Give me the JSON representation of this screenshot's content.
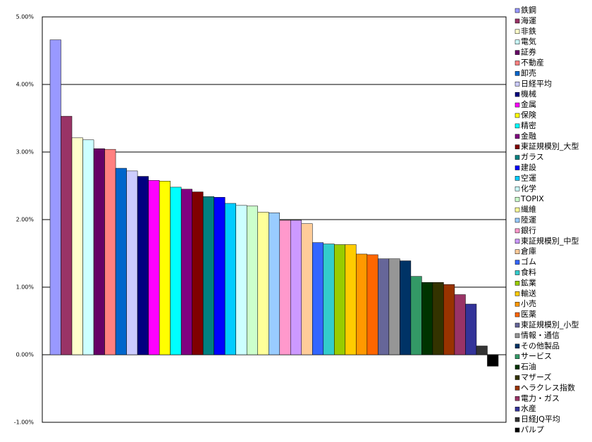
{
  "chart_data": {
    "type": "bar",
    "categories": [
      "鉄鋼",
      "海運",
      "非鉄",
      "電気",
      "証券",
      "不動産",
      "卸売",
      "日経平均",
      "機械",
      "金属",
      "保険",
      "精密",
      "金融",
      "東証規模別_大型",
      "ガラス",
      "建設",
      "空運",
      "化学",
      "TOPIX",
      "繊維",
      "陸運",
      "銀行",
      "東証規模別_中型",
      "倉庫",
      "ゴム",
      "食料",
      "鉱業",
      "輸送",
      "小売",
      "医薬",
      "東証規模別_小型",
      "情報・通信",
      "その他製品",
      "サービス",
      "石油",
      "マザーズ",
      "ヘラクレス指数",
      "電力・ガス",
      "水産",
      "日経JQ平均",
      "パルプ"
    ],
    "values": [
      4.66,
      3.53,
      3.21,
      3.18,
      3.05,
      3.04,
      2.76,
      2.72,
      2.64,
      2.58,
      2.57,
      2.48,
      2.45,
      2.41,
      2.34,
      2.33,
      2.24,
      2.21,
      2.2,
      2.11,
      2.1,
      1.99,
      1.99,
      1.94,
      1.66,
      1.64,
      1.63,
      1.63,
      1.49,
      1.48,
      1.42,
      1.42,
      1.39,
      1.16,
      1.07,
      1.07,
      1.04,
      0.89,
      0.75,
      0.13,
      -0.17
    ],
    "colors": [
      "#9999ff",
      "#993366",
      "#ffffcc",
      "#ccffff",
      "#660066",
      "#ff8080",
      "#0066cc",
      "#ccccff",
      "#000080",
      "#ff00ff",
      "#ffff00",
      "#00ffff",
      "#800080",
      "#800000",
      "#008080",
      "#0000ff",
      "#00ccff",
      "#ccffff",
      "#ccffcc",
      "#ffff99",
      "#99ccff",
      "#ff99cc",
      "#cc99ff",
      "#ffcc99",
      "#3366ff",
      "#33cccc",
      "#99cc00",
      "#ffcc00",
      "#ff9900",
      "#ff6600",
      "#666699",
      "#969696",
      "#003366",
      "#339966",
      "#003300",
      "#333300",
      "#993300",
      "#993366",
      "#333399",
      "#333333",
      "#000000"
    ],
    "ylim": [
      -1,
      5
    ],
    "yticks": [
      {
        "value": -1,
        "label": "-1.00%"
      },
      {
        "value": 0,
        "label": "0.00%"
      },
      {
        "value": 1,
        "label": "1.00%"
      },
      {
        "value": 2,
        "label": "2.00%"
      },
      {
        "value": 3,
        "label": "3.00%"
      },
      {
        "value": 4,
        "label": "4.00%"
      },
      {
        "value": 5,
        "label": "5.00%"
      }
    ],
    "grid": true,
    "legend": "right"
  }
}
